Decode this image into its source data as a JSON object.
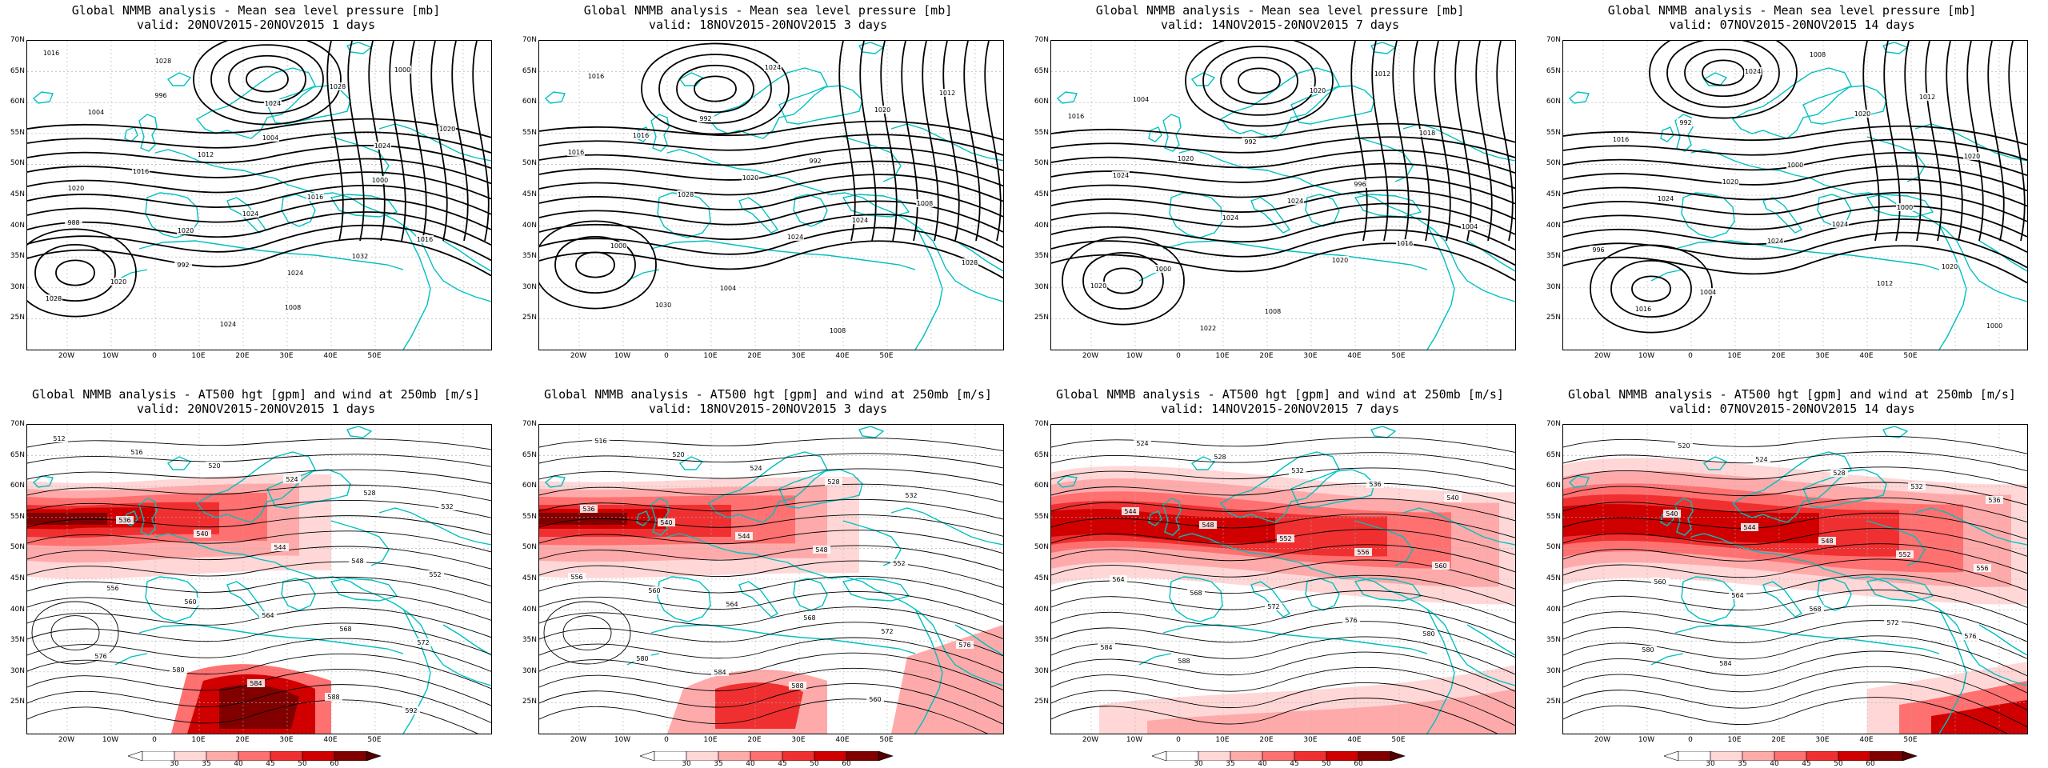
{
  "figure": {
    "rows": [
      {
        "title_line1": "Global NMMB analysis - Mean sea level pressure [mb]",
        "kind": "mslp",
        "panels": [
          {
            "valid": "valid: 20NOV2015-20NOV2015  1 days",
            "labels": [
              "1016",
              "996",
              "1004",
              "1000",
              "988",
              "992",
              "1008",
              "1000",
              "1004",
              "1012",
              "1016",
              "1016",
              "1020",
              "1024",
              "1028",
              "1020",
              "1016",
              "1024",
              "1032",
              "1028",
              "1028",
              "1024",
              "1024",
              "1020",
              "1020",
              "1024"
            ]
          },
          {
            "valid": "valid: 18NOV2015-20NOV2015  3 days",
            "labels": [
              "1016",
              "992",
              "992",
              "1008",
              "1000",
              "1004",
              "1008",
              "1012",
              "1016",
              "1020",
              "1024",
              "1028",
              "1030",
              "1024",
              "1020",
              "1016",
              "1028",
              "1024"
            ]
          },
          {
            "valid": "valid: 14NOV2015-20NOV2015  7 days",
            "labels": [
              "1004",
              "992",
              "996",
              "1004",
              "1000",
              "1008",
              "1012",
              "1016",
              "1020",
              "1024",
              "1016",
              "1020",
              "1022",
              "1020",
              "1018",
              "1024",
              "1024",
              "1020"
            ]
          },
          {
            "valid": "valid: 07NOV2015-20NOV2015  14 days",
            "labels": [
              "992",
              "1000",
              "1000",
              "996",
              "1004",
              "1008",
              "1012",
              "1016",
              "1020",
              "1024",
              "1020",
              "1016",
              "1024",
              "1020",
              "1020",
              "1024",
              "1024",
              "1012",
              "1000"
            ]
          }
        ]
      },
      {
        "title_line1": "Global NMMB analysis - AT500 hgt [gpm] and wind at 250mb [m/s]",
        "kind": "z500",
        "panels": [
          {
            "valid": "valid: 20NOV2015-20NOV2015  1 days",
            "labels": [
              "512",
              "516",
              "520",
              "524",
              "528",
              "532",
              "536",
              "540",
              "544",
              "548",
              "552",
              "556",
              "560",
              "564",
              "568",
              "572",
              "576",
              "580",
              "584",
              "588",
              "592"
            ]
          },
          {
            "valid": "valid: 18NOV2015-20NOV2015  3 days",
            "labels": [
              "516",
              "520",
              "524",
              "528",
              "532",
              "536",
              "540",
              "544",
              "548",
              "552",
              "556",
              "560",
              "564",
              "568",
              "572",
              "576",
              "580",
              "584",
              "588",
              "560"
            ]
          },
          {
            "valid": "valid: 14NOV2015-20NOV2015  7 days",
            "labels": [
              "524",
              "528",
              "532",
              "536",
              "540",
              "544",
              "548",
              "552",
              "556",
              "560",
              "564",
              "568",
              "572",
              "576",
              "580",
              "584",
              "588"
            ]
          },
          {
            "valid": "valid: 07NOV2015-20NOV2015  14 days",
            "labels": [
              "520",
              "524",
              "528",
              "532",
              "536",
              "540",
              "544",
              "548",
              "552",
              "556",
              "560",
              "564",
              "568",
              "572",
              "576",
              "580",
              "584"
            ]
          }
        ]
      }
    ],
    "lat_ticks": [
      "70N",
      "65N",
      "60N",
      "55N",
      "50N",
      "45N",
      "40N",
      "35N",
      "30N",
      "25N"
    ],
    "lon_ticks": [
      "20W",
      "10W",
      "0",
      "10E",
      "20E",
      "30E",
      "40E",
      "50E"
    ],
    "colorbar_ticks": [
      "30",
      "35",
      "40",
      "45",
      "50",
      "60"
    ],
    "colors": {
      "contour": "#000000",
      "coastline": "#00c0c0",
      "grid": "#b0b0b0",
      "wind_levels": [
        "#ffd7d7",
        "#ffaaaa",
        "#ff7070",
        "#f03030",
        "#d00000",
        "#800000"
      ]
    }
  }
}
